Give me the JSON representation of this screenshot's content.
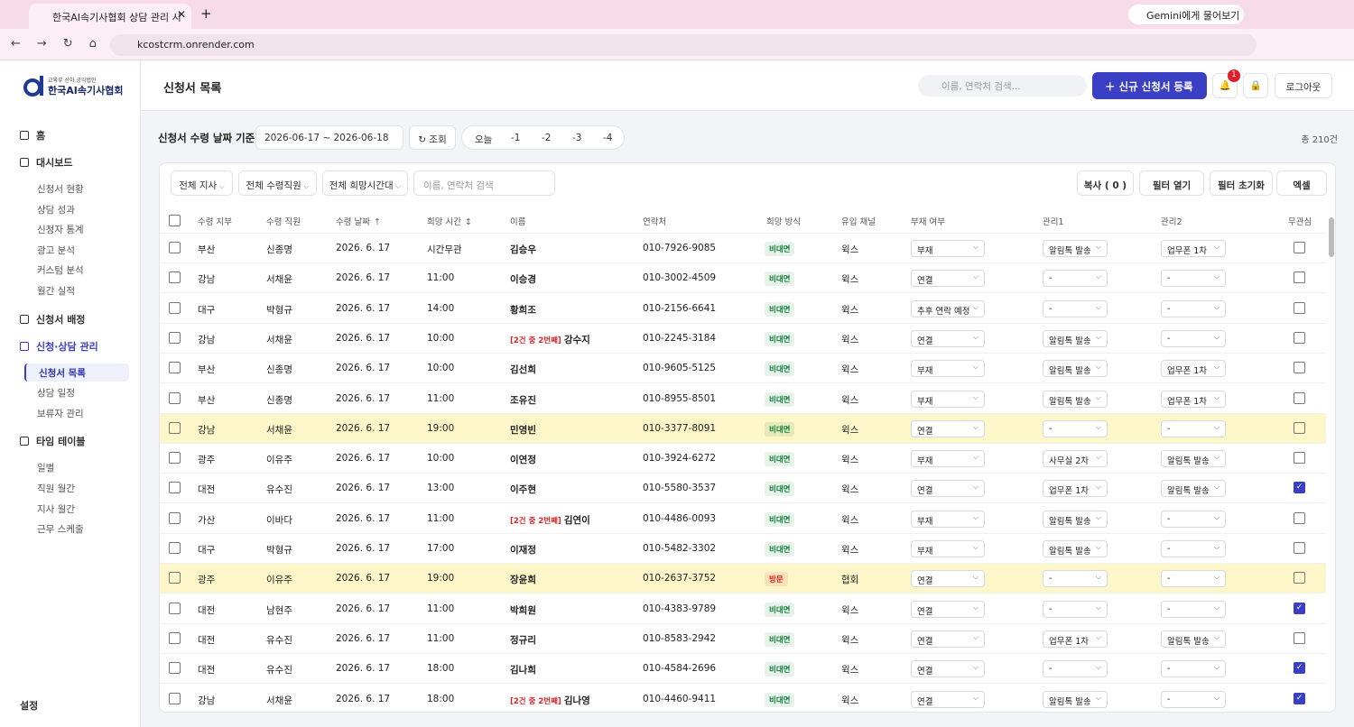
{
  "browser": {
    "tab_title": "한국AI속기사협회 상담 관리 시",
    "gemini": "Gemini에게 물어보기",
    "url": "kcostcrm.onrender.com"
  },
  "sidebar": {
    "logo_sub": "교육부 산하 공익법인",
    "logo_name": "한국AI속기사협회",
    "nav": [
      {
        "label": "홈"
      },
      {
        "label": "대시보드",
        "items": [
          "신청서 현황",
          "상담 성과",
          "신청자 통계",
          "광고 분석",
          "커스텀 분석",
          "월간 실적"
        ]
      },
      {
        "label": "신청서 배정"
      },
      {
        "label": "신청·상담 관리",
        "active": true,
        "active_item": 0,
        "items": [
          "신청서 목록",
          "상담 일정",
          "보류자 관리"
        ]
      },
      {
        "label": "타임 테이블",
        "items": [
          "일별",
          "직원 월간",
          "지사 월간",
          "근무 스케줄"
        ]
      }
    ],
    "settings": "설정"
  },
  "header": {
    "title": "신청서 목록",
    "search_placeholder": "이름, 연락처 검색...",
    "new_button": "신규 신청서 등록",
    "notification_count": 1,
    "logout": "로그아웃"
  },
  "filters": {
    "date_label": "신청서 수령 날짜 기준",
    "date_range": "2026-06-17 ~ 2026-06-18",
    "query": "조회",
    "quick": [
      "오늘",
      "-1",
      "-2",
      "-3",
      "-4"
    ],
    "total": "총 210건"
  },
  "toolbar": {
    "selects": [
      "전체 지사",
      "전체 수령직원",
      "전체 희망시간대"
    ],
    "search_placeholder": "이름, 연락처 검색",
    "copy": "복사 ( 0 )",
    "filter_open": "필터 열기",
    "filter_reset": "필터 초기화",
    "excel": "엑셀"
  },
  "table": {
    "columns": [
      {
        "label": "수령 지부"
      },
      {
        "label": "수령 직원"
      },
      {
        "label": "수령 날짜",
        "sort": "asc"
      },
      {
        "label": "희망 시간",
        "sort": "both"
      },
      {
        "label": "이름"
      },
      {
        "label": "연락처"
      },
      {
        "label": "희망 방식"
      },
      {
        "label": "유입 채널"
      },
      {
        "label": "부재 여부"
      },
      {
        "label": "관리1"
      },
      {
        "label": "관리2"
      },
      {
        "label": "무관심"
      }
    ],
    "rows": [
      {
        "branch": "부산",
        "staff": "신종명",
        "date": "2026. 6. 17",
        "time": "시간무관",
        "name": "김승우",
        "phone": "010-7926-9085",
        "method": "비대면",
        "method_color": "#15803d",
        "channel": "윅스",
        "absent": "부재",
        "m1": "알림톡 발송",
        "m2": "업무폰 1차",
        "checked": false,
        "highlight": false
      },
      {
        "branch": "강남",
        "staff": "서채윤",
        "date": "2026. 6. 17",
        "time": "11:00",
        "name": "이승경",
        "phone": "010-3002-4509",
        "method": "비대면",
        "method_color": "#15803d",
        "channel": "윅스",
        "absent": "연결",
        "m1": "-",
        "m2": "-",
        "checked": false,
        "highlight": false
      },
      {
        "branch": "대구",
        "staff": "박형규",
        "date": "2026. 6. 17",
        "time": "14:00",
        "name": "황희조",
        "phone": "010-2156-6641",
        "method": "비대면",
        "method_color": "#15803d",
        "channel": "윅스",
        "absent": "추후 연락 예정",
        "m1": "-",
        "m2": "-",
        "checked": false,
        "highlight": false
      },
      {
        "branch": "강남",
        "staff": "서채윤",
        "date": "2026. 6. 17",
        "time": "10:00",
        "tag": "[2건 중 2번째]",
        "name": "강수지",
        "phone": "010-2245-3184",
        "method": "비대면",
        "method_color": "#15803d",
        "channel": "윅스",
        "absent": "연결",
        "m1": "알림톡 발송",
        "m2": "-",
        "checked": false,
        "highlight": false
      },
      {
        "branch": "부산",
        "staff": "신종명",
        "date": "2026. 6. 17",
        "time": "10:00",
        "name": "김선희",
        "phone": "010-9605-5125",
        "method": "비대면",
        "method_color": "#15803d",
        "channel": "윅스",
        "absent": "부재",
        "m1": "알림톡 발송",
        "m2": "업무폰 1차",
        "checked": false,
        "highlight": false
      },
      {
        "branch": "부산",
        "staff": "신종명",
        "date": "2026. 6. 17",
        "time": "11:00",
        "name": "조유진",
        "phone": "010-8955-8501",
        "method": "비대면",
        "method_color": "#15803d",
        "channel": "윅스",
        "absent": "부재",
        "m1": "알림톡 발송",
        "m2": "업무폰 1차",
        "checked": false,
        "highlight": false
      },
      {
        "branch": "강남",
        "staff": "서채윤",
        "date": "2026. 6. 17",
        "time": "19:00",
        "name": "민영빈",
        "phone": "010-3377-8091",
        "method": "비대면",
        "method_color": "#15803d",
        "channel": "윅스",
        "absent": "연결",
        "m1": "-",
        "m2": "-",
        "checked": false,
        "highlight": true
      },
      {
        "branch": "광주",
        "staff": "이유주",
        "date": "2026. 6. 17",
        "time": "10:00",
        "name": "이연정",
        "phone": "010-3924-6272",
        "method": "비대면",
        "method_color": "#15803d",
        "channel": "윅스",
        "absent": "부재",
        "m1": "사무실 2차",
        "m2": "알림톡 발송",
        "checked": false,
        "highlight": false
      },
      {
        "branch": "대전",
        "staff": "유수진",
        "date": "2026. 6. 17",
        "time": "13:00",
        "name": "이주현",
        "phone": "010-5580-3537",
        "method": "비대면",
        "method_color": "#15803d",
        "channel": "윅스",
        "absent": "연결",
        "m1": "업무폰 1차",
        "m2": "알림톡 발송",
        "checked": true,
        "highlight": false
      },
      {
        "branch": "가산",
        "staff": "이바다",
        "date": "2026. 6. 17",
        "time": "11:00",
        "tag": "[2건 중 2번째]",
        "name": "김연이",
        "phone": "010-4486-0093",
        "method": "비대면",
        "method_color": "#15803d",
        "channel": "윅스",
        "absent": "부재",
        "m1": "알림톡 발송",
        "m2": "-",
        "checked": false,
        "highlight": false
      },
      {
        "branch": "대구",
        "staff": "박형규",
        "date": "2026. 6. 17",
        "time": "17:00",
        "name": "이재정",
        "phone": "010-5482-3302",
        "method": "비대면",
        "method_color": "#15803d",
        "channel": "윅스",
        "absent": "부재",
        "m1": "알림톡 발송",
        "m2": "-",
        "checked": false,
        "highlight": false
      },
      {
        "branch": "광주",
        "staff": "이유주",
        "date": "2026. 6. 17",
        "time": "19:00",
        "name": "장윤희",
        "phone": "010-2637-3752",
        "method": "방문",
        "method_color": "#dc2626",
        "channel": "협회",
        "absent": "연결",
        "m1": "-",
        "m2": "-",
        "checked": false,
        "highlight": true
      },
      {
        "branch": "대전",
        "staff": "남현주",
        "date": "2026. 6. 17",
        "time": "11:00",
        "name": "박희원",
        "phone": "010-4383-9789",
        "method": "비대면",
        "method_color": "#15803d",
        "channel": "윅스",
        "absent": "연결",
        "m1": "-",
        "m2": "-",
        "checked": true,
        "highlight": false
      },
      {
        "branch": "대전",
        "staff": "유수진",
        "date": "2026. 6. 17",
        "time": "11:00",
        "name": "정규리",
        "phone": "010-8583-2942",
        "method": "비대면",
        "method_color": "#15803d",
        "channel": "윅스",
        "absent": "연결",
        "m1": "업무폰 1차",
        "m2": "알림톡 발송",
        "checked": false,
        "highlight": false
      },
      {
        "branch": "대전",
        "staff": "유수진",
        "date": "2026. 6. 17",
        "time": "18:00",
        "name": "김나희",
        "phone": "010-4584-2696",
        "method": "비대면",
        "method_color": "#15803d",
        "channel": "윅스",
        "absent": "연결",
        "m1": "-",
        "m2": "-",
        "checked": true,
        "highlight": false
      },
      {
        "branch": "강남",
        "staff": "서채윤",
        "date": "2026. 6. 17",
        "time": "18:00",
        "tag": "[2건 중 2번째]",
        "name": "김나영",
        "phone": "010-4460-9411",
        "method": "비대면",
        "method_color": "#15803d",
        "channel": "윅스",
        "absent": "연결",
        "m1": "알림톡 발송",
        "m2": "-",
        "checked": true,
        "highlight": false
      }
    ]
  }
}
